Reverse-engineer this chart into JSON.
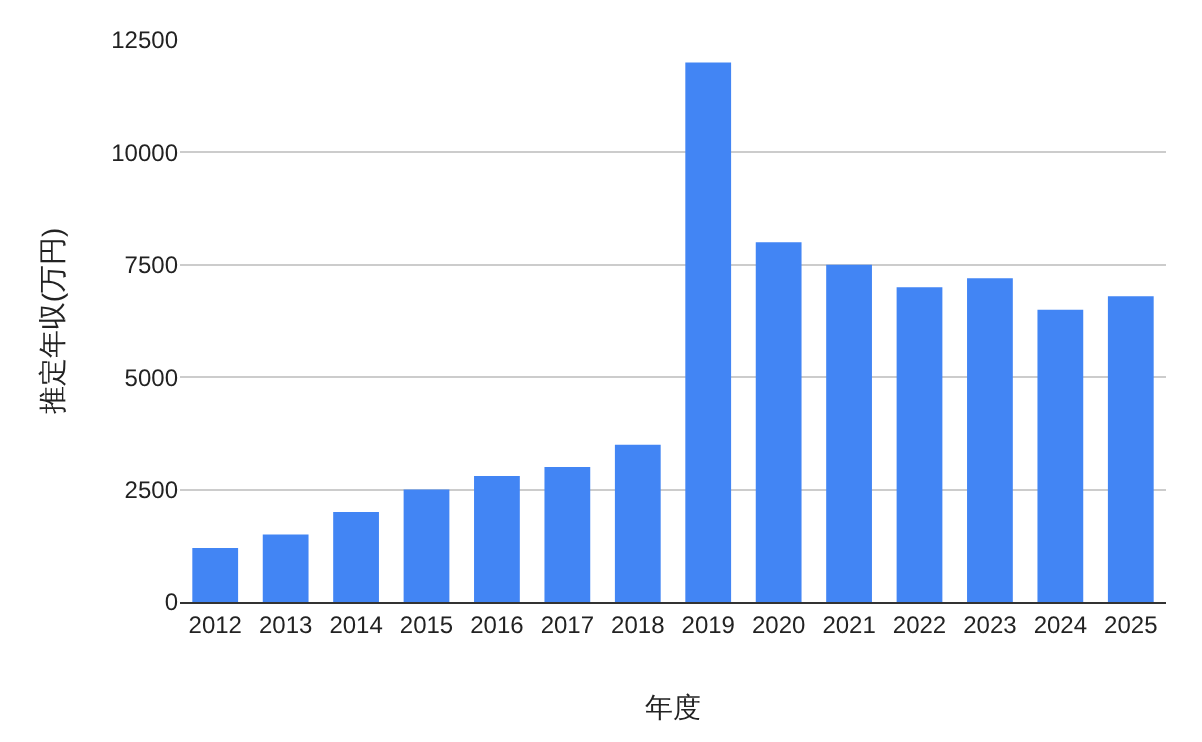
{
  "chart_data": {
    "type": "bar",
    "xlabel": "年度",
    "ylabel": "推定年収(万円)",
    "categories": [
      "2012",
      "2013",
      "2014",
      "2015",
      "2016",
      "2017",
      "2018",
      "2019",
      "2020",
      "2021",
      "2022",
      "2023",
      "2024",
      "2025"
    ],
    "values": [
      1200,
      1500,
      2000,
      2500,
      2800,
      3000,
      3500,
      12000,
      8000,
      7500,
      7000,
      7200,
      6500,
      6800
    ],
    "color": "#4285f4",
    "ylim": [
      0,
      12500
    ],
    "yticks": [
      0,
      2500,
      5000,
      7500,
      10000,
      12500
    ],
    "grid": "y"
  }
}
